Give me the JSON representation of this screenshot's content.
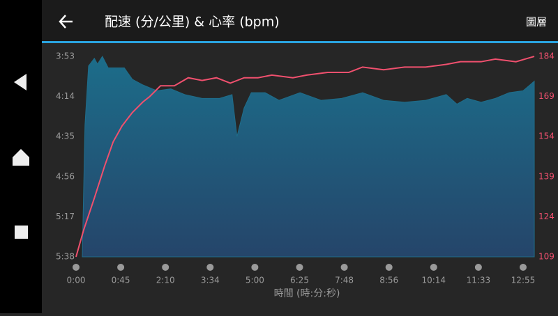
{
  "header": {
    "title": "配速 (分/公里) & 心率 (bpm)",
    "menu": "圖層"
  },
  "chart_data": {
    "type": "area-line",
    "x_label": "時間 (時:分:秒)",
    "xlim": [
      0,
      10.25
    ],
    "xticks": [
      {
        "value": 0,
        "label": "0:00"
      },
      {
        "value": 1,
        "label": "0:45"
      },
      {
        "value": 2,
        "label": "2:10"
      },
      {
        "value": 3,
        "label": "3:34"
      },
      {
        "value": 4,
        "label": "5:00"
      },
      {
        "value": 5,
        "label": "6:25"
      },
      {
        "value": 6,
        "label": "7:48"
      },
      {
        "value": 7,
        "label": "8:56"
      },
      {
        "value": 8,
        "label": "10:14"
      },
      {
        "value": 9,
        "label": "11:33"
      },
      {
        "value": 10,
        "label": "12:55"
      }
    ],
    "ylim": [
      338,
      233
    ],
    "yticks": [
      {
        "value": 233,
        "label": "3:53"
      },
      {
        "value": 254,
        "label": "4:14"
      },
      {
        "value": 275,
        "label": "4:35"
      },
      {
        "value": 296,
        "label": "4:56"
      },
      {
        "value": 317,
        "label": "5:17"
      },
      {
        "value": 338,
        "label": "5:38"
      }
    ],
    "y2lim": [
      109,
      184
    ],
    "y2ticks": [
      109,
      124,
      139,
      154,
      169,
      184
    ],
    "grid": false,
    "series": [
      {
        "type": "area",
        "color": "#1f6d8a",
        "x": [
          0.14,
          0.2,
          0.28,
          0.41,
          0.48,
          0.59,
          0.72,
          0.87,
          1.08,
          1.26,
          1.5,
          1.81,
          2.12,
          2.43,
          2.82,
          3.21,
          3.49,
          3.6,
          3.76,
          3.92,
          4.23,
          4.54,
          5.01,
          5.48,
          5.94,
          6.41,
          6.88,
          7.35,
          7.82,
          8.28,
          8.52,
          8.75,
          9.06,
          9.38,
          9.69,
          10.0,
          10.25
        ],
        "values": [
          338,
          269,
          238,
          234,
          237,
          233,
          239,
          239,
          239,
          245,
          248,
          251,
          250,
          253,
          255,
          255,
          253,
          275,
          260,
          252,
          252,
          256,
          252,
          256,
          255,
          252,
          256,
          257,
          256,
          253,
          258,
          255,
          257,
          255,
          252,
          251,
          246
        ]
      },
      {
        "type": "line",
        "axis": "y2",
        "color": "#f0506e",
        "x": [
          0,
          0.17,
          0.41,
          0.64,
          0.83,
          1.03,
          1.26,
          1.5,
          1.65,
          1.89,
          2.2,
          2.51,
          2.82,
          3.14,
          3.45,
          3.76,
          4.07,
          4.38,
          4.85,
          5.16,
          5.63,
          6.1,
          6.41,
          6.88,
          7.35,
          7.82,
          8.28,
          8.6,
          9.06,
          9.38,
          9.84,
          10.25
        ],
        "values": [
          109,
          119,
          131,
          143,
          152,
          158,
          163,
          167,
          169,
          173,
          173,
          176,
          175,
          176,
          174,
          176,
          176,
          177,
          176,
          177,
          178,
          178,
          180,
          179,
          180,
          180,
          181,
          182,
          182,
          183,
          182,
          184
        ]
      }
    ]
  }
}
